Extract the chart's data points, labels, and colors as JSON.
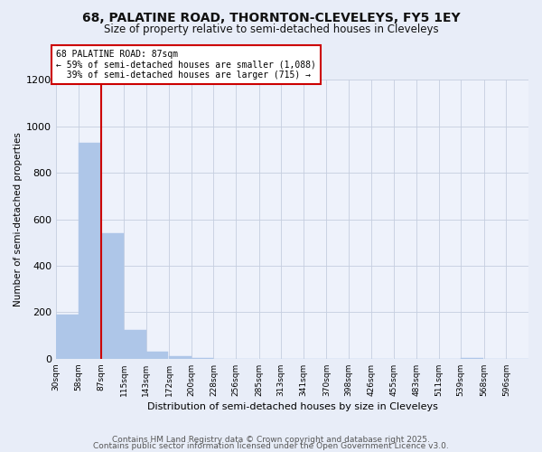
{
  "title": "68, PALATINE ROAD, THORNTON-CLEVELEYS, FY5 1EY",
  "subtitle": "Size of property relative to semi-detached houses in Cleveleys",
  "xlabel": "Distribution of semi-detached houses by size in Cleveleys",
  "ylabel": "Number of semi-detached properties",
  "bins": [
    30,
    58,
    87,
    115,
    143,
    172,
    200,
    228,
    256,
    285,
    313,
    341,
    370,
    398,
    426,
    455,
    483,
    511,
    539,
    568,
    596
  ],
  "bin_labels": [
    "30sqm",
    "58sqm",
    "87sqm",
    "115sqm",
    "143sqm",
    "172sqm",
    "200sqm",
    "228sqm",
    "256sqm",
    "285sqm",
    "313sqm",
    "341sqm",
    "370sqm",
    "398sqm",
    "426sqm",
    "455sqm",
    "483sqm",
    "511sqm",
    "539sqm",
    "568sqm",
    "596sqm"
  ],
  "counts": [
    190,
    930,
    540,
    125,
    30,
    10,
    5,
    0,
    0,
    0,
    0,
    0,
    0,
    0,
    0,
    0,
    0,
    0,
    5,
    0,
    0
  ],
  "bar_color": "#aec6e8",
  "property_size_bin": 87,
  "property_label": "68 PALATINE ROAD: 87sqm",
  "pct_smaller": 59,
  "pct_larger": 39,
  "count_smaller": 1088,
  "count_larger": 715,
  "vline_color": "#cc0000",
  "annotation_box_color": "#cc0000",
  "ylim": [
    0,
    1200
  ],
  "yticks": [
    0,
    200,
    400,
    600,
    800,
    1000,
    1200
  ],
  "bg_color": "#e8edf8",
  "plot_bg_color": "#eef2fb",
  "grid_color": "#c5cedf",
  "footer1": "Contains HM Land Registry data © Crown copyright and database right 2025.",
  "footer2": "Contains public sector information licensed under the Open Government Licence v3.0."
}
